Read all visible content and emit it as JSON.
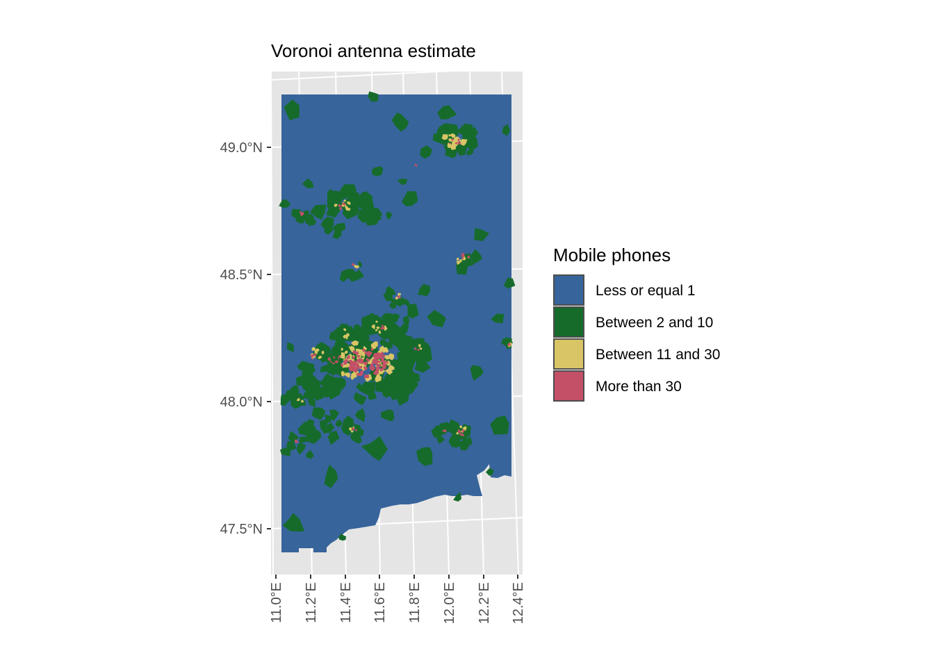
{
  "map": {
    "title": "Voronoi antenna estimate",
    "lat_ticks": [
      "49.0°N",
      "48.5°N",
      "48.0°N",
      "47.5°N"
    ],
    "lon_ticks": [
      "11.0°E",
      "11.2°E",
      "11.4°E",
      "11.6°E",
      "11.8°E",
      "12.0°E",
      "12.2°E",
      "12.4°E"
    ],
    "background_color": "#e5e5e5",
    "graticule_color": "#ffffff"
  },
  "legend": {
    "title": "Mobile phones",
    "items": [
      {
        "label": "Less or equal 1",
        "color": "#37649b"
      },
      {
        "label": "Between 2 and 10",
        "color": "#166b2b"
      },
      {
        "label": "Between 11 and 30",
        "color": "#d9c566"
      },
      {
        "label": "More than 30",
        "color": "#c35067"
      }
    ]
  }
}
